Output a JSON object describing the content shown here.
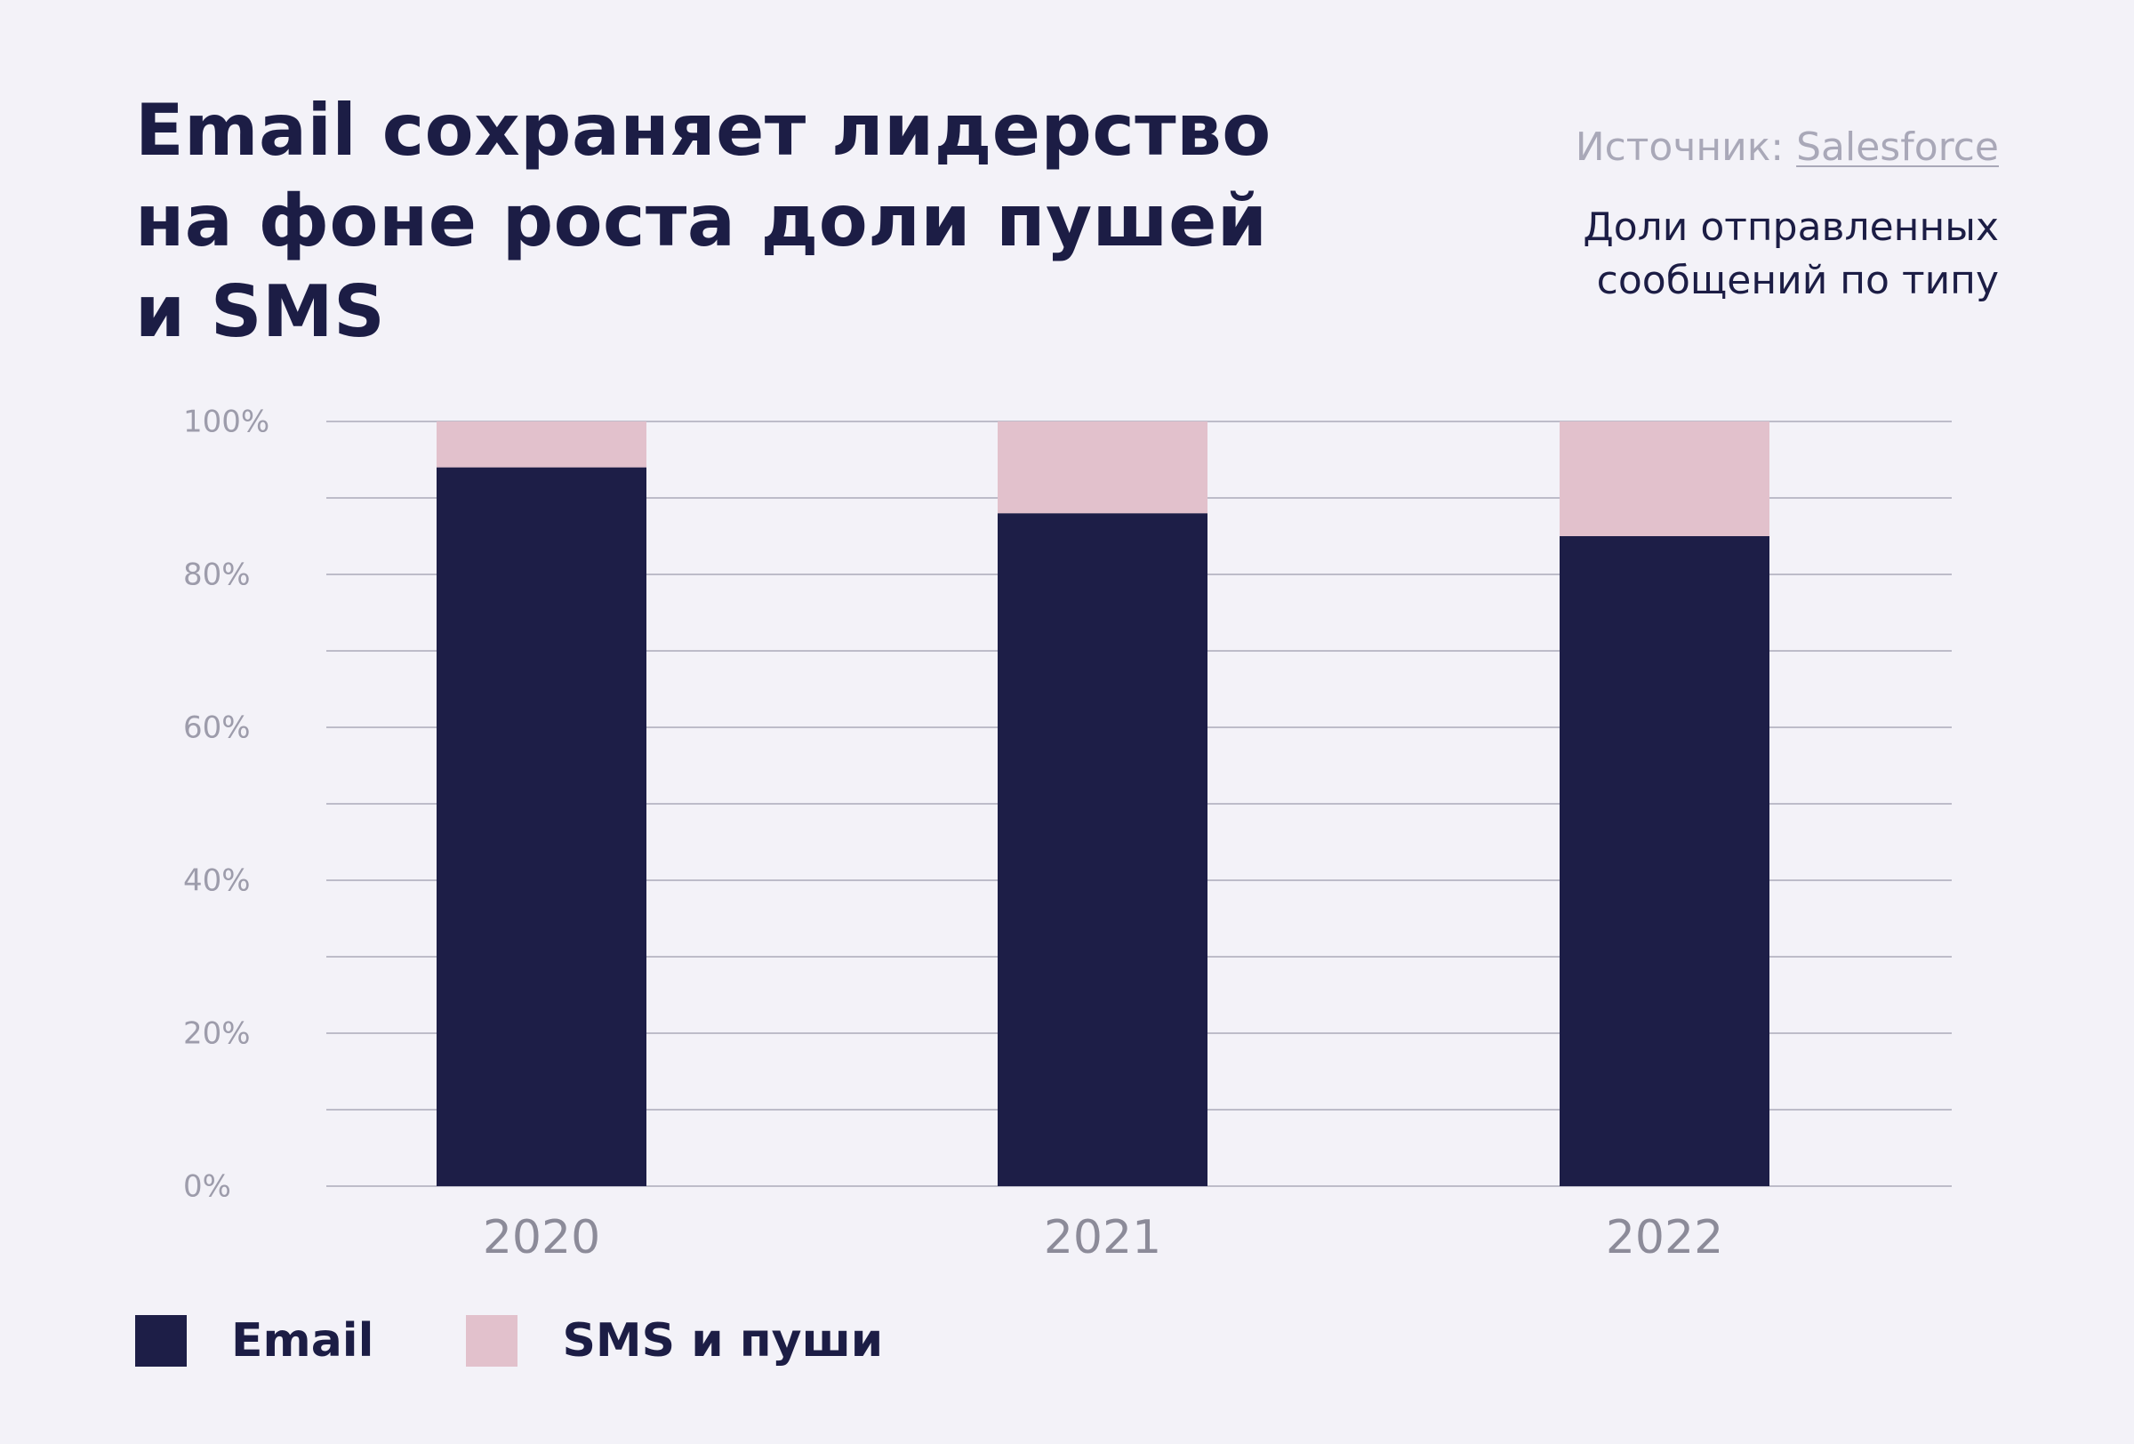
{
  "header": {
    "title": "Email сохраняет лидерство на фоне роста доли пушей и SMS",
    "source_prefix": "Источник: ",
    "source_name": "Salesforce",
    "subtitle": "Доли отправленных сообщений по типу"
  },
  "colors": {
    "email": "#1d1e47",
    "sms_push": "#e2c1cc",
    "grid": "#bdbcc9",
    "background": "#f3f2f8"
  },
  "chart_data": {
    "type": "bar",
    "stacked": true,
    "title": "Email сохраняет лидерство на фоне роста доли пушей и SMS",
    "subtitle": "Доли отправленных сообщений по типу",
    "categories": [
      "2020",
      "2021",
      "2022"
    ],
    "series": [
      {
        "name": "Email",
        "values": [
          94,
          88,
          85
        ],
        "color": "#1d1e47"
      },
      {
        "name": "SMS и пуши",
        "values": [
          6,
          12,
          15
        ],
        "color": "#e2c1cc"
      }
    ],
    "ylim": [
      0,
      100
    ],
    "yticks": [
      0,
      20,
      40,
      60,
      80,
      100
    ],
    "ytick_labels": [
      "0%",
      "20%",
      "40%",
      "60%",
      "80%",
      "100%"
    ],
    "minor_gridlines": [
      10,
      30,
      50,
      70,
      90
    ],
    "grid": true,
    "legend_position": "bottom-left"
  }
}
